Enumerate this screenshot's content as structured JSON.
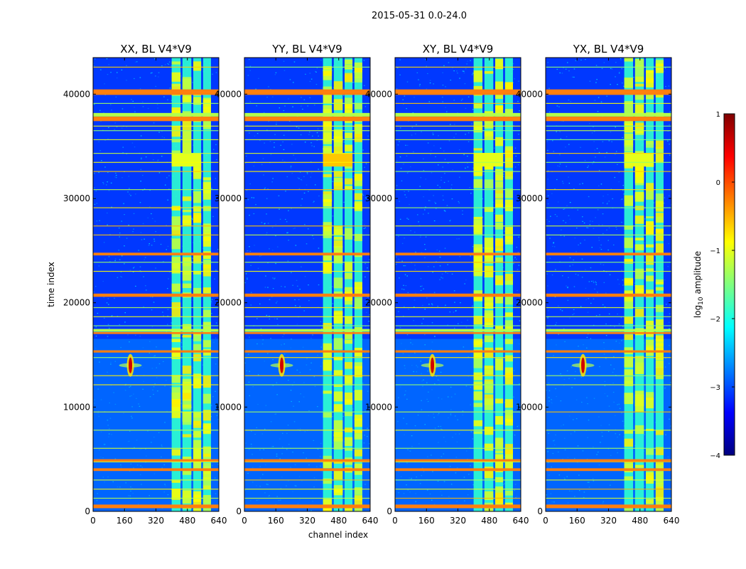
{
  "figure": {
    "suptitle": "2015-05-31 0.0-24.0"
  },
  "chart_data": [
    {
      "type": "heatmap",
      "title": "XX, BL V4*V9",
      "xlabel": "channel index",
      "ylabel": "time index",
      "xlim": [
        0,
        640
      ],
      "ylim": [
        0,
        43500
      ],
      "xticks": [
        0,
        160,
        320,
        480,
        640
      ],
      "yticks": [
        0,
        10000,
        20000,
        30000,
        40000
      ],
      "grid": false
    },
    {
      "type": "heatmap",
      "title": "YY, BL V4*V9",
      "xlabel": "channel index",
      "xlim": [
        0,
        640
      ],
      "ylim": [
        0,
        43500
      ],
      "xticks": [
        0,
        160,
        320,
        480,
        640
      ],
      "yticks": [
        0,
        10000,
        20000,
        30000,
        40000
      ],
      "grid": false
    },
    {
      "type": "heatmap",
      "title": "XY, BL V4*V9",
      "xlim": [
        0,
        640
      ],
      "ylim": [
        0,
        43500
      ],
      "xticks": [
        0,
        160,
        320,
        480,
        640
      ],
      "yticks": [
        0,
        10000,
        20000,
        30000,
        40000
      ],
      "grid": false
    },
    {
      "type": "heatmap",
      "title": "YX, BL V4*V9",
      "xlim": [
        0,
        640
      ],
      "ylim": [
        0,
        43500
      ],
      "xticks": [
        0,
        160,
        320,
        480,
        640
      ],
      "yticks": [
        0,
        10000,
        20000,
        30000,
        40000
      ],
      "grid": false
    }
  ],
  "colorbar": {
    "label": "log10 amplitude",
    "label_main": "log",
    "label_sub": "10",
    "label_rest": " amplitude",
    "range": [
      -4,
      1
    ],
    "ticks": [
      1,
      0,
      -1,
      -2,
      -3,
      -4
    ],
    "tick_labels": [
      "1",
      "0",
      "−1",
      "−2",
      "−3",
      "−4"
    ],
    "colormap": "jet",
    "colors": [
      "#00007f",
      "#0000ff",
      "#007fff",
      "#00ffff",
      "#7fff7f",
      "#ffff00",
      "#ff7f00",
      "#ff0000",
      "#7f0000"
    ]
  },
  "flag_color": "#ff7f0e"
}
